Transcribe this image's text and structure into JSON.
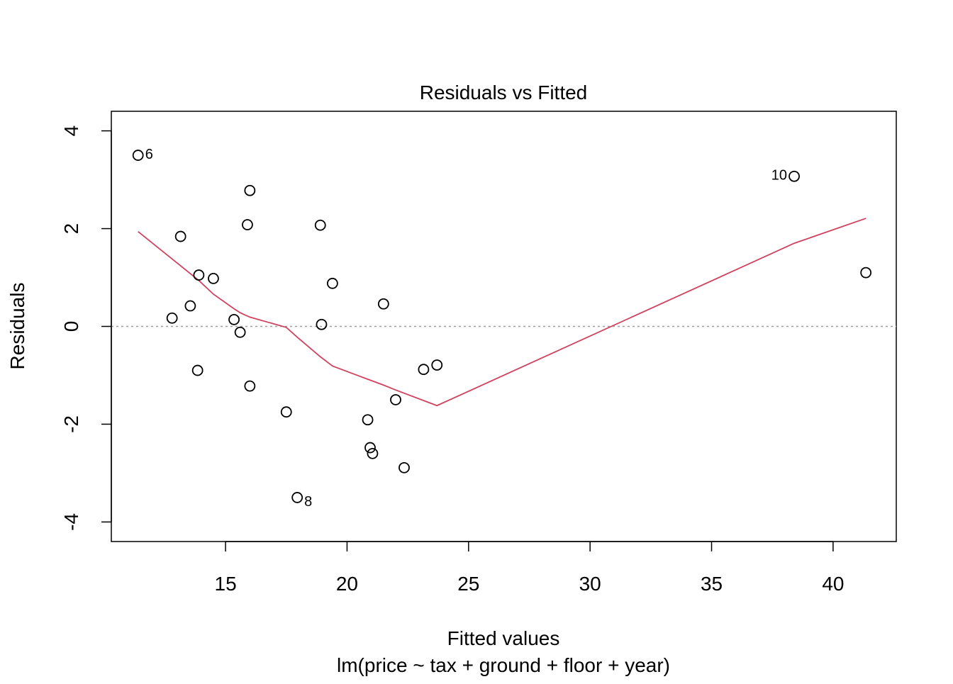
{
  "chart_data": {
    "type": "scatter",
    "title": "Residuals vs Fitted",
    "xlabel": "Fitted values",
    "subtitle": "lm(price ~ tax + ground + floor + year)",
    "ylabel": "Residuals",
    "xlim": [
      10.3,
      42.6
    ],
    "ylim": [
      -4.4,
      4.4
    ],
    "xticks": [
      15,
      20,
      25,
      30,
      35,
      40
    ],
    "yticks": [
      -4,
      -2,
      0,
      2,
      4
    ],
    "reference_line": {
      "y": 0,
      "style": "dotted",
      "color": "#9e9e9e"
    },
    "points": [
      {
        "x": 11.4,
        "y": 3.5,
        "label": "6"
      },
      {
        "x": 12.8,
        "y": 0.17
      },
      {
        "x": 13.15,
        "y": 1.84
      },
      {
        "x": 13.55,
        "y": 0.42
      },
      {
        "x": 13.85,
        "y": -0.9
      },
      {
        "x": 13.9,
        "y": 1.05
      },
      {
        "x": 14.5,
        "y": 0.98
      },
      {
        "x": 15.35,
        "y": 0.14
      },
      {
        "x": 15.6,
        "y": -0.12
      },
      {
        "x": 15.9,
        "y": 2.08
      },
      {
        "x": 16.0,
        "y": 2.78
      },
      {
        "x": 16.0,
        "y": -1.22
      },
      {
        "x": 17.5,
        "y": -1.75
      },
      {
        "x": 17.95,
        "y": -3.5,
        "label": "8"
      },
      {
        "x": 18.9,
        "y": 2.07
      },
      {
        "x": 18.95,
        "y": 0.04
      },
      {
        "x": 19.4,
        "y": 0.88
      },
      {
        "x": 20.85,
        "y": -1.91
      },
      {
        "x": 20.95,
        "y": -2.48
      },
      {
        "x": 21.05,
        "y": -2.6
      },
      {
        "x": 21.5,
        "y": 0.46
      },
      {
        "x": 22.0,
        "y": -1.5
      },
      {
        "x": 22.35,
        "y": -2.89
      },
      {
        "x": 23.15,
        "y": -0.88
      },
      {
        "x": 23.7,
        "y": -0.79
      },
      {
        "x": 38.4,
        "y": 3.07,
        "label": "10"
      },
      {
        "x": 41.35,
        "y": 1.1
      }
    ],
    "smooth_line": {
      "color": "#d1425f",
      "x": [
        11.4,
        12.8,
        13.9,
        14.5,
        15.35,
        15.6,
        16.0,
        17.5,
        17.95,
        18.9,
        19.4,
        20.85,
        21.5,
        22.0,
        23.7,
        38.4,
        41.35
      ],
      "y": [
        1.94,
        1.38,
        0.94,
        0.66,
        0.36,
        0.28,
        0.19,
        -0.02,
        -0.22,
        -0.62,
        -0.81,
        -1.08,
        -1.2,
        -1.3,
        -1.62,
        1.7,
        2.21
      ]
    }
  }
}
